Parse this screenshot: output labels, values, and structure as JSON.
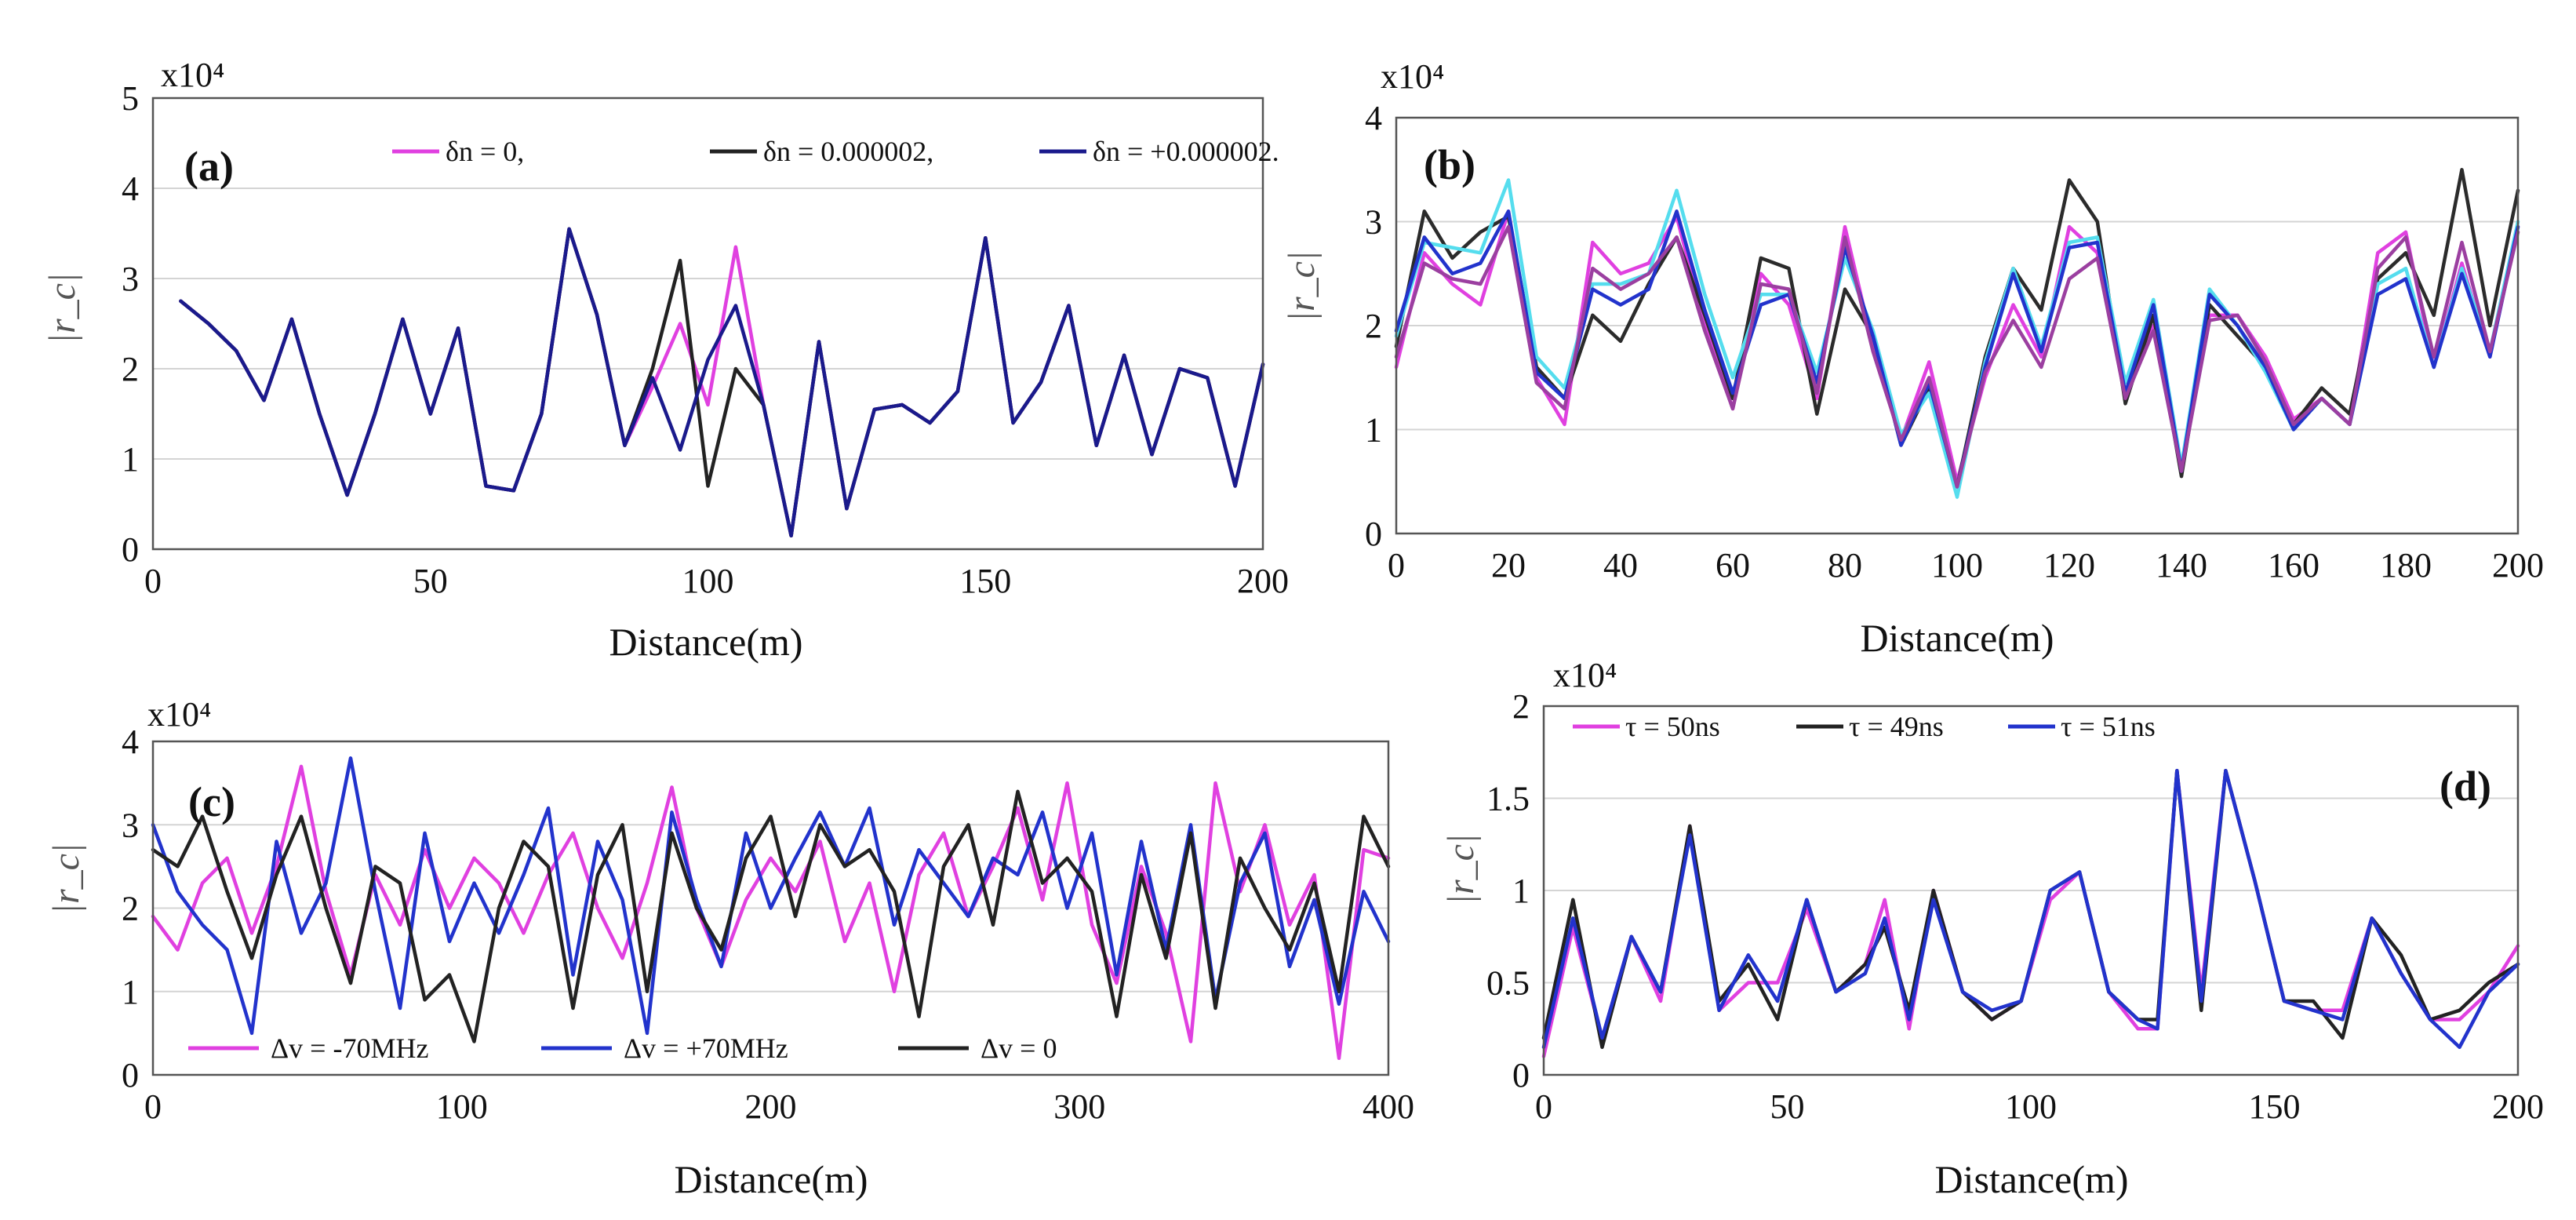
{
  "figure": {
    "colors": {
      "magenta": "#e040e0",
      "black": "#222222",
      "blue": "#2233cc",
      "navy": "#1a1a8c",
      "cyan": "#55ddee",
      "purple": "#9b3fa0",
      "dark": "#2b2b2b"
    }
  },
  "chart_data": [
    {
      "type": "line",
      "panel": "(a)",
      "xlabel": "Distance(m)",
      "ylabel": "|r_c|",
      "multiplier": "x10⁴",
      "xlim": [
        0,
        200
      ],
      "ylim": [
        0,
        5
      ],
      "xticks": [
        0,
        50,
        100,
        150,
        200
      ],
      "yticks": [
        0,
        1,
        2,
        3,
        4,
        5
      ],
      "legend_position": "top-right",
      "base_x": [
        5,
        10,
        15,
        20,
        25,
        30,
        35,
        40,
        45,
        50,
        55,
        60,
        65,
        70,
        75,
        80,
        85,
        90,
        95,
        100,
        105,
        110,
        115,
        120,
        125,
        130,
        135,
        140,
        145,
        150,
        155,
        160,
        165,
        170,
        175,
        180,
        185,
        190,
        195,
        200
      ],
      "series": [
        {
          "name": "δn = 0,",
          "color": "magenta",
          "values": [
            2.75,
            2.5,
            2.2,
            1.65,
            2.55,
            1.5,
            0.6,
            1.5,
            2.55,
            1.5,
            2.45,
            0.7,
            0.65,
            1.5,
            3.55,
            2.6,
            1.15,
            1.8,
            2.5,
            1.6,
            3.35,
            1.6,
            0.15,
            2.3,
            0.45,
            1.55,
            1.6,
            1.4,
            1.75,
            3.45,
            1.4,
            1.85,
            2.7,
            1.15,
            2.15,
            1.05,
            2.0,
            1.9,
            0.7,
            2.05
          ]
        },
        {
          "name": "δn = 0.000002,",
          "color": "black",
          "values": [
            2.75,
            2.5,
            2.2,
            1.65,
            2.55,
            1.5,
            0.6,
            1.5,
            2.55,
            1.5,
            2.45,
            0.7,
            0.65,
            1.5,
            3.55,
            2.6,
            1.15,
            2.0,
            3.2,
            0.7,
            2.0,
            1.6,
            0.15,
            2.3,
            0.45,
            1.55,
            1.6,
            1.4,
            1.75,
            3.45,
            1.4,
            1.85,
            2.7,
            1.15,
            2.15,
            1.05,
            2.0,
            1.9,
            0.7,
            2.05
          ]
        },
        {
          "name": "δn = +0.000002.",
          "color": "navy",
          "values": [
            2.75,
            2.5,
            2.2,
            1.65,
            2.55,
            1.5,
            0.6,
            1.5,
            2.55,
            1.5,
            2.45,
            0.7,
            0.65,
            1.5,
            3.55,
            2.6,
            1.15,
            1.9,
            1.1,
            2.1,
            2.7,
            1.6,
            0.15,
            2.3,
            0.45,
            1.55,
            1.6,
            1.4,
            1.75,
            3.45,
            1.4,
            1.85,
            2.7,
            1.15,
            2.15,
            1.05,
            2.0,
            1.9,
            0.7,
            2.05
          ]
        }
      ]
    },
    {
      "type": "line",
      "panel": "(b)",
      "xlabel": "Distance(m)",
      "ylabel": "|r_c|",
      "multiplier": "x10⁴",
      "xlim": [
        0,
        200
      ],
      "ylim": [
        0,
        4
      ],
      "xticks": [
        0,
        20,
        40,
        60,
        80,
        100,
        120,
        140,
        160,
        180,
        200
      ],
      "yticks": [
        0,
        1,
        2,
        3,
        4
      ],
      "base_x": [
        0,
        5,
        10,
        15,
        20,
        25,
        30,
        35,
        40,
        45,
        50,
        55,
        60,
        65,
        70,
        75,
        80,
        85,
        90,
        95,
        100,
        105,
        110,
        115,
        120,
        125,
        130,
        135,
        140,
        145,
        150,
        155,
        160,
        165,
        170,
        175,
        180,
        185,
        190,
        195,
        200
      ],
      "series": [
        {
          "name": "magenta",
          "color": "magenta",
          "values": [
            1.6,
            2.7,
            2.4,
            2.2,
            3.1,
            1.5,
            1.05,
            2.8,
            2.5,
            2.6,
            3.05,
            2.0,
            1.2,
            2.5,
            2.2,
            1.3,
            2.95,
            1.8,
            0.9,
            1.65,
            0.5,
            1.5,
            2.2,
            1.7,
            2.95,
            2.7,
            1.3,
            2.0,
            0.6,
            2.1,
            2.1,
            1.7,
            1.1,
            1.3,
            1.05,
            2.7,
            2.9,
            1.6,
            2.6,
            1.7,
            2.95
          ]
        },
        {
          "name": "black",
          "color": "dark",
          "values": [
            1.8,
            3.1,
            2.65,
            2.9,
            3.05,
            1.6,
            1.3,
            2.1,
            1.85,
            2.4,
            2.85,
            2.1,
            1.3,
            2.65,
            2.55,
            1.15,
            2.35,
            1.9,
            0.85,
            1.4,
            0.45,
            1.7,
            2.55,
            2.15,
            3.4,
            3.0,
            1.25,
            2.1,
            0.55,
            2.2,
            1.9,
            1.6,
            1.05,
            1.4,
            1.15,
            2.45,
            2.7,
            2.1,
            3.5,
            2.0,
            3.3
          ]
        },
        {
          "name": "cyan",
          "color": "cyan",
          "values": [
            1.9,
            2.8,
            2.75,
            2.7,
            3.4,
            1.7,
            1.4,
            2.4,
            2.4,
            2.5,
            3.3,
            2.3,
            1.5,
            2.3,
            2.3,
            1.55,
            2.65,
            1.95,
            0.95,
            1.35,
            0.35,
            1.65,
            2.55,
            1.8,
            2.8,
            2.85,
            1.45,
            2.25,
            0.65,
            2.35,
            2.0,
            1.55,
            1.0,
            1.3,
            1.05,
            2.4,
            2.55,
            1.6,
            2.55,
            1.75,
            3.0
          ]
        },
        {
          "name": "blue",
          "color": "blue",
          "values": [
            1.95,
            2.85,
            2.5,
            2.6,
            3.1,
            1.55,
            1.3,
            2.35,
            2.2,
            2.35,
            3.1,
            2.15,
            1.35,
            2.2,
            2.3,
            1.45,
            2.75,
            1.9,
            0.85,
            1.45,
            0.45,
            1.6,
            2.5,
            1.75,
            2.75,
            2.8,
            1.35,
            2.2,
            0.6,
            2.3,
            2.0,
            1.6,
            1.0,
            1.3,
            1.05,
            2.3,
            2.45,
            1.6,
            2.5,
            1.7,
            2.95
          ]
        },
        {
          "name": "purple",
          "color": "purple",
          "values": [
            1.7,
            2.6,
            2.45,
            2.4,
            2.95,
            1.45,
            1.2,
            2.55,
            2.35,
            2.5,
            2.85,
            1.95,
            1.2,
            2.4,
            2.35,
            1.35,
            2.85,
            1.75,
            0.9,
            1.5,
            0.45,
            1.55,
            2.05,
            1.6,
            2.45,
            2.65,
            1.3,
            1.95,
            0.6,
            2.05,
            2.1,
            1.65,
            1.05,
            1.3,
            1.05,
            2.55,
            2.85,
            1.7,
            2.8,
            1.75,
            2.9
          ]
        }
      ]
    },
    {
      "type": "line",
      "panel": "(c)",
      "xlabel": "Distance(m)",
      "ylabel": "|r_c|",
      "multiplier": "x10⁴",
      "xlim": [
        0,
        400
      ],
      "ylim": [
        0,
        4
      ],
      "xticks": [
        0,
        100,
        200,
        300,
        400
      ],
      "yticks": [
        0,
        1,
        2,
        3,
        4
      ],
      "legend_position": "bottom-left",
      "base_x": [
        0,
        8,
        16,
        24,
        32,
        40,
        48,
        56,
        64,
        72,
        80,
        88,
        96,
        104,
        112,
        120,
        128,
        136,
        144,
        152,
        160,
        168,
        176,
        184,
        192,
        200,
        208,
        216,
        224,
        232,
        240,
        248,
        256,
        264,
        272,
        280,
        288,
        296,
        304,
        312,
        320,
        328,
        336,
        344,
        352,
        360,
        368,
        376,
        384,
        392,
        400
      ],
      "series": [
        {
          "name": "Δv = -70MHz",
          "color": "magenta",
          "values": [
            1.9,
            1.5,
            2.3,
            2.6,
            1.7,
            2.5,
            3.7,
            2.2,
            1.2,
            2.4,
            1.8,
            2.7,
            2.0,
            2.6,
            2.3,
            1.7,
            2.4,
            2.9,
            2.0,
            1.4,
            2.3,
            3.45,
            2.0,
            1.3,
            2.1,
            2.6,
            2.2,
            2.8,
            1.6,
            2.3,
            1.0,
            2.4,
            2.9,
            1.9,
            2.5,
            3.2,
            2.1,
            3.5,
            1.8,
            1.1,
            2.5,
            1.7,
            0.4,
            3.5,
            2.2,
            3.0,
            1.8,
            2.4,
            0.2,
            2.7,
            2.6
          ]
        },
        {
          "name": "Δv = +70MHz",
          "color": "blue",
          "values": [
            3.0,
            2.2,
            1.8,
            1.5,
            0.5,
            2.8,
            1.7,
            2.3,
            3.8,
            2.2,
            0.8,
            2.9,
            1.6,
            2.3,
            1.7,
            2.4,
            3.2,
            1.2,
            2.8,
            2.1,
            0.5,
            3.15,
            2.1,
            1.3,
            2.9,
            2.0,
            2.6,
            3.15,
            2.5,
            3.2,
            1.8,
            2.7,
            2.3,
            1.9,
            2.6,
            2.4,
            3.15,
            2.0,
            2.9,
            1.2,
            2.8,
            1.5,
            3.0,
            0.9,
            2.3,
            2.9,
            1.3,
            2.1,
            0.85,
            2.2,
            1.6
          ]
        },
        {
          "name": "Δv = 0",
          "color": "black",
          "values": [
            2.7,
            2.5,
            3.1,
            2.2,
            1.4,
            2.4,
            3.1,
            2.0,
            1.1,
            2.5,
            2.3,
            0.9,
            1.2,
            0.4,
            2.0,
            2.8,
            2.5,
            0.8,
            2.4,
            3.0,
            1.0,
            2.9,
            2.0,
            1.5,
            2.6,
            3.1,
            1.9,
            3.0,
            2.5,
            2.7,
            2.2,
            0.7,
            2.5,
            3.0,
            1.8,
            3.4,
            2.3,
            2.6,
            2.2,
            0.7,
            2.4,
            1.4,
            2.9,
            0.8,
            2.6,
            2.0,
            1.5,
            2.3,
            1.0,
            3.1,
            2.5
          ]
        }
      ]
    },
    {
      "type": "line",
      "panel": "(d)",
      "xlabel": "Distance(m)",
      "ylabel": "|r_c|",
      "multiplier": "x10⁴",
      "xlim": [
        0,
        200
      ],
      "ylim": [
        0,
        2
      ],
      "xticks": [
        0,
        50,
        100,
        150,
        200
      ],
      "yticks": [
        0,
        0.5,
        1,
        1.5,
        2
      ],
      "legend_position": "top-left",
      "base_x": [
        0,
        6,
        12,
        18,
        24,
        30,
        36,
        42,
        48,
        54,
        60,
        66,
        70,
        75,
        80,
        86,
        92,
        98,
        104,
        110,
        116,
        122,
        126,
        130,
        135,
        140,
        146,
        152,
        158,
        164,
        170,
        176,
        182,
        188,
        194,
        200
      ],
      "series": [
        {
          "name": "τ = 50ns",
          "color": "magenta",
          "values": [
            0.1,
            0.8,
            0.2,
            0.75,
            0.4,
            1.35,
            0.35,
            0.5,
            0.5,
            0.9,
            0.45,
            0.6,
            0.95,
            0.25,
            1.0,
            0.45,
            0.3,
            0.4,
            0.95,
            1.1,
            0.45,
            0.25,
            0.25,
            1.65,
            0.45,
            1.65,
            1.05,
            0.4,
            0.35,
            0.35,
            0.85,
            0.55,
            0.3,
            0.3,
            0.45,
            0.7
          ]
        },
        {
          "name": "τ = 49ns",
          "color": "black",
          "values": [
            0.2,
            0.95,
            0.15,
            0.75,
            0.45,
            1.35,
            0.4,
            0.6,
            0.3,
            0.95,
            0.45,
            0.6,
            0.8,
            0.35,
            1.0,
            0.45,
            0.3,
            0.4,
            1.0,
            1.1,
            0.45,
            0.3,
            0.3,
            1.65,
            0.35,
            1.65,
            1.05,
            0.4,
            0.4,
            0.2,
            0.85,
            0.65,
            0.3,
            0.35,
            0.5,
            0.6
          ]
        },
        {
          "name": "τ = 51ns",
          "color": "blue",
          "values": [
            0.15,
            0.85,
            0.2,
            0.75,
            0.45,
            1.3,
            0.35,
            0.65,
            0.4,
            0.95,
            0.45,
            0.55,
            0.85,
            0.3,
            0.95,
            0.45,
            0.35,
            0.4,
            1.0,
            1.1,
            0.45,
            0.3,
            0.25,
            1.65,
            0.4,
            1.65,
            1.05,
            0.4,
            0.35,
            0.3,
            0.85,
            0.55,
            0.3,
            0.15,
            0.45,
            0.6
          ]
        }
      ]
    }
  ]
}
